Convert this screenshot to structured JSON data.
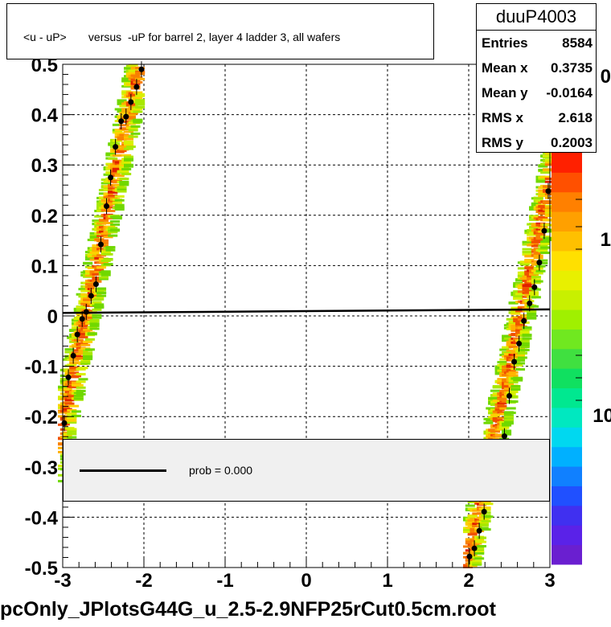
{
  "title": "<u - uP>       versus  -uP for barrel 2, layer 4 ladder 3, all wafers",
  "stats": {
    "name": "duuP4003",
    "rows": [
      {
        "key": "Entries",
        "value": "8584"
      },
      {
        "key": "Mean x",
        "value": "0.3735"
      },
      {
        "key": "Mean y",
        "value": "-0.0164"
      },
      {
        "key": "RMS x",
        "value": "2.618"
      },
      {
        "key": "RMS y",
        "value": "0.2003"
      }
    ]
  },
  "legend": {
    "label": "prob = 0.000"
  },
  "footer": "pcOnly_JPlotsG44G_u_2.5-2.9NFP25rCut0.5cm.root",
  "colorbar": {
    "labels": [
      "1",
      "10"
    ],
    "top_partial": "0"
  },
  "chart_data": {
    "type": "scatter",
    "title": "<u - uP>       versus  -uP for barrel 2, layer 4 ladder 3, all wafers",
    "xlim": [
      -3,
      3
    ],
    "ylim": [
      -0.5,
      0.5
    ],
    "x_ticks": [
      "-3",
      "-2",
      "-1",
      "0",
      "1",
      "2",
      "3"
    ],
    "y_ticks": [
      "-0.5",
      "-0.4",
      "-0.3",
      "-0.2",
      "-0.1",
      "0",
      "0.1",
      "0.2",
      "0.3",
      "0.4",
      "0.5"
    ],
    "grid": true,
    "profile_points": [
      {
        "x": -2.98,
        "y": -0.213
      },
      {
        "x": -2.93,
        "y": -0.122
      },
      {
        "x": -2.87,
        "y": -0.079
      },
      {
        "x": -2.82,
        "y": -0.037
      },
      {
        "x": -2.76,
        "y": -0.006
      },
      {
        "x": -2.71,
        "y": 0.008
      },
      {
        "x": -2.65,
        "y": 0.04
      },
      {
        "x": -2.59,
        "y": 0.063
      },
      {
        "x": -2.53,
        "y": 0.142
      },
      {
        "x": -2.46,
        "y": 0.218
      },
      {
        "x": -2.41,
        "y": 0.275
      },
      {
        "x": -2.35,
        "y": 0.336
      },
      {
        "x": -2.28,
        "y": 0.387
      },
      {
        "x": -2.22,
        "y": 0.396
      },
      {
        "x": -2.16,
        "y": 0.425
      },
      {
        "x": -2.09,
        "y": 0.455
      },
      {
        "x": -2.03,
        "y": 0.49
      },
      {
        "x": 2.01,
        "y": -0.478
      },
      {
        "x": 2.07,
        "y": -0.462
      },
      {
        "x": 2.13,
        "y": -0.427
      },
      {
        "x": 2.19,
        "y": -0.389
      },
      {
        "x": 2.44,
        "y": -0.239
      },
      {
        "x": 2.5,
        "y": -0.159
      },
      {
        "x": 2.56,
        "y": -0.091
      },
      {
        "x": 2.62,
        "y": -0.055
      },
      {
        "x": 2.68,
        "y": -0.01
      },
      {
        "x": 2.75,
        "y": 0.025
      },
      {
        "x": 2.81,
        "y": 0.057
      },
      {
        "x": 2.87,
        "y": 0.106
      },
      {
        "x": 2.93,
        "y": 0.169
      },
      {
        "x": 2.98,
        "y": 0.248
      }
    ],
    "fit_line": {
      "x": [
        -3,
        3
      ],
      "y": [
        0.006,
        0.013
      ]
    }
  }
}
